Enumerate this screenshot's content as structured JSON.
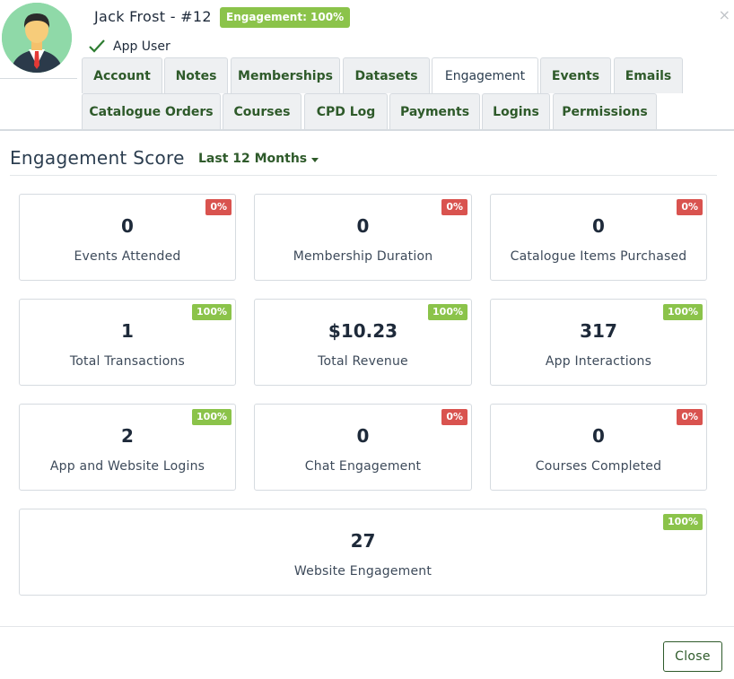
{
  "header": {
    "user_name": "Jack Frost - #12",
    "engagement_badge": "Engagement: 100%",
    "role_label": "App User",
    "close_symbol": "×"
  },
  "tabs": [
    {
      "label": "Account",
      "active": false
    },
    {
      "label": "Notes",
      "active": false
    },
    {
      "label": "Memberships",
      "active": false
    },
    {
      "label": "Datasets",
      "active": false
    },
    {
      "label": "Engagement",
      "active": true
    },
    {
      "label": "Events",
      "active": false
    },
    {
      "label": "Emails",
      "active": false
    },
    {
      "label": "Catalogue Orders",
      "active": false
    },
    {
      "label": "Courses",
      "active": false
    },
    {
      "label": "CPD Log",
      "active": false
    },
    {
      "label": "Payments",
      "active": false
    },
    {
      "label": "Logins",
      "active": false
    },
    {
      "label": "Permissions",
      "active": false
    }
  ],
  "section": {
    "title": "Engagement Score",
    "period": "Last 12 Months"
  },
  "metrics": [
    {
      "value": "0",
      "label": "Events Attended",
      "percent": "0%",
      "status": "red"
    },
    {
      "value": "0",
      "label": "Membership Duration",
      "percent": "0%",
      "status": "red"
    },
    {
      "value": "0",
      "label": "Catalogue Items Purchased",
      "percent": "0%",
      "status": "red"
    },
    {
      "value": "1",
      "label": "Total Transactions",
      "percent": "100%",
      "status": "green"
    },
    {
      "value": "$10.23",
      "label": "Total Revenue",
      "percent": "100%",
      "status": "green"
    },
    {
      "value": "317",
      "label": "App Interactions",
      "percent": "100%",
      "status": "green"
    },
    {
      "value": "2",
      "label": "App and Website Logins",
      "percent": "100%",
      "status": "green"
    },
    {
      "value": "0",
      "label": "Chat Engagement",
      "percent": "0%",
      "status": "red"
    },
    {
      "value": "0",
      "label": "Courses Completed",
      "percent": "0%",
      "status": "red"
    },
    {
      "value": "27",
      "label": "Website Engagement",
      "percent": "100%",
      "status": "green"
    }
  ],
  "footer": {
    "close_label": "Close"
  },
  "colors": {
    "accent_green": "#2e5a2a",
    "badge_green": "#8bc34a",
    "badge_red": "#d9534f",
    "avatar_bg": "#8fd9a8"
  },
  "icons": {
    "avatar": "businessman-avatar-icon",
    "check": "check-icon",
    "close": "close-icon",
    "dropdown": "caret-down-icon"
  }
}
